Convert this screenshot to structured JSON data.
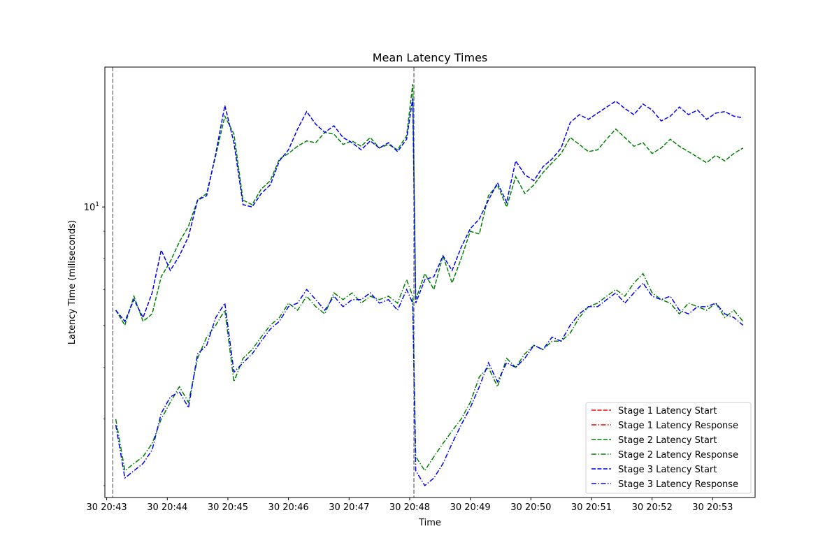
{
  "chart_data": {
    "type": "line",
    "title": "Mean Latency Times",
    "xlabel": "Time",
    "ylabel": "Latency Time (miliseconds)",
    "yscale": "log",
    "ylim": [
      2.85,
      18.3
    ],
    "y_ticks": [
      {
        "value": 10,
        "label": "10",
        "exponent": "1"
      }
    ],
    "x_tick_labels": [
      "30 20:43",
      "30 20:44",
      "30 20:45",
      "30 20:46",
      "30 20:47",
      "30 20:48",
      "30 20:49",
      "30 20:50",
      "30 20:51",
      "30 20:52",
      "30 20:53"
    ],
    "xlim": [
      -0.03,
      10.7
    ],
    "vlines": [
      0.1,
      5.07
    ],
    "vline_color": "#808080",
    "legend_position": "lower right",
    "series": [
      {
        "name": "Stage 1 Latency Start",
        "color": "#ff0000",
        "style": "dashed",
        "x": [],
        "y": []
      },
      {
        "name": "Stage 1 Latency Response",
        "color": "#ff0000",
        "style": "dashdot",
        "x": [],
        "y": []
      },
      {
        "name": "Stage 2 Latency Start",
        "color": "#008000",
        "style": "dashed",
        "x": [
          0.15,
          0.3,
          0.45,
          0.6,
          0.75,
          0.9,
          1.05,
          1.2,
          1.35,
          1.5,
          1.65,
          1.8,
          1.95,
          2.1,
          2.25,
          2.4,
          2.55,
          2.7,
          2.85,
          3.0,
          3.15,
          3.3,
          3.45,
          3.6,
          3.75,
          3.9,
          4.05,
          4.2,
          4.35,
          4.5,
          4.65,
          4.8,
          4.95,
          5.05,
          5.1,
          5.25,
          5.4,
          5.55,
          5.7,
          5.85,
          6.0,
          6.15,
          6.3,
          6.45,
          6.6,
          6.75,
          6.9,
          7.05,
          7.2,
          7.35,
          7.5,
          7.65,
          7.8,
          7.95,
          8.1,
          8.25,
          8.4,
          8.55,
          8.7,
          8.85,
          9.0,
          9.15,
          9.3,
          9.45,
          9.6,
          9.75,
          9.9,
          10.05,
          10.2,
          10.35,
          10.5
        ],
        "y": [
          6.4,
          6.0,
          6.8,
          6.1,
          6.3,
          7.4,
          7.9,
          8.6,
          9.2,
          10.3,
          10.6,
          12.5,
          14.8,
          13.7,
          10.3,
          10.1,
          10.8,
          11.2,
          12.3,
          12.6,
          13.0,
          13.3,
          13.2,
          13.8,
          13.7,
          13.1,
          13.3,
          13.0,
          13.5,
          12.9,
          13.1,
          12.8,
          13.6,
          17.0,
          6.7,
          7.5,
          7.0,
          8.1,
          7.2,
          8.0,
          9.0,
          8.9,
          10.5,
          11.0,
          10.0,
          11.4,
          10.6,
          11.0,
          11.6,
          12.1,
          12.6,
          13.5,
          13.1,
          12.7,
          12.8,
          13.4,
          14.0,
          13.5,
          13.0,
          13.2,
          12.6,
          12.9,
          13.4,
          13.0,
          12.7,
          12.4,
          12.1,
          12.5,
          12.2,
          12.6,
          12.9
        ]
      },
      {
        "name": "Stage 2 Latency Response",
        "color": "#008000",
        "style": "dashdot",
        "x": [
          0.15,
          0.3,
          0.45,
          0.6,
          0.75,
          0.9,
          1.05,
          1.2,
          1.35,
          1.5,
          1.65,
          1.8,
          1.95,
          2.1,
          2.25,
          2.4,
          2.55,
          2.7,
          2.85,
          3.0,
          3.15,
          3.3,
          3.45,
          3.6,
          3.75,
          3.9,
          4.05,
          4.2,
          4.35,
          4.5,
          4.65,
          4.8,
          4.95,
          5.05,
          5.1,
          5.25,
          5.4,
          5.55,
          5.7,
          5.85,
          6.0,
          6.15,
          6.3,
          6.45,
          6.6,
          6.75,
          6.9,
          7.05,
          7.2,
          7.35,
          7.5,
          7.65,
          7.8,
          7.95,
          8.1,
          8.25,
          8.4,
          8.55,
          8.7,
          8.85,
          9.0,
          9.15,
          9.3,
          9.45,
          9.6,
          9.75,
          9.9,
          10.05,
          10.2,
          10.35,
          10.5
        ],
        "y": [
          4.0,
          3.2,
          3.3,
          3.4,
          3.6,
          4.0,
          4.3,
          4.6,
          4.3,
          5.2,
          5.7,
          6.0,
          6.4,
          4.7,
          5.2,
          5.4,
          5.7,
          6.0,
          6.2,
          6.6,
          6.4,
          6.8,
          6.5,
          6.3,
          6.9,
          6.7,
          6.9,
          6.6,
          6.8,
          6.7,
          6.8,
          6.6,
          7.3,
          6.8,
          3.4,
          3.2,
          3.4,
          3.6,
          3.8,
          4.0,
          4.3,
          4.8,
          5.0,
          4.6,
          5.2,
          5.0,
          5.3,
          5.5,
          5.4,
          5.6,
          5.6,
          5.8,
          6.2,
          6.5,
          6.6,
          6.8,
          7.0,
          6.8,
          7.2,
          7.5,
          6.9,
          6.7,
          6.6,
          6.3,
          6.6,
          6.5,
          6.4,
          6.6,
          6.2,
          6.4,
          6.1
        ]
      },
      {
        "name": "Stage 3 Latency Start",
        "color": "#0000ff",
        "style": "dashed",
        "x": [
          0.15,
          0.3,
          0.45,
          0.6,
          0.75,
          0.9,
          1.05,
          1.2,
          1.35,
          1.5,
          1.65,
          1.8,
          1.95,
          2.1,
          2.25,
          2.4,
          2.55,
          2.7,
          2.85,
          3.0,
          3.15,
          3.3,
          3.45,
          3.6,
          3.75,
          3.9,
          4.05,
          4.2,
          4.35,
          4.5,
          4.65,
          4.8,
          4.95,
          5.05,
          5.1,
          5.25,
          5.4,
          5.55,
          5.7,
          5.85,
          6.0,
          6.15,
          6.3,
          6.45,
          6.6,
          6.75,
          6.9,
          7.05,
          7.2,
          7.35,
          7.5,
          7.65,
          7.8,
          7.95,
          8.1,
          8.25,
          8.4,
          8.55,
          8.7,
          8.85,
          9.0,
          9.15,
          9.3,
          9.45,
          9.6,
          9.75,
          9.9,
          10.05,
          10.2,
          10.35,
          10.5
        ],
        "y": [
          6.4,
          6.1,
          6.7,
          6.2,
          6.9,
          8.3,
          7.6,
          8.1,
          8.8,
          10.3,
          10.5,
          12.6,
          15.5,
          13.2,
          10.1,
          10.0,
          10.6,
          11.0,
          12.2,
          12.8,
          14.0,
          15.1,
          14.3,
          13.8,
          14.2,
          13.5,
          13.2,
          12.8,
          13.3,
          12.9,
          13.2,
          12.7,
          13.4,
          16.0,
          6.6,
          7.3,
          7.4,
          8.1,
          7.6,
          8.4,
          9.1,
          9.5,
          10.3,
          11.1,
          10.2,
          12.2,
          11.5,
          11.2,
          11.9,
          12.3,
          12.9,
          14.4,
          14.9,
          14.6,
          15.0,
          15.4,
          15.8,
          15.3,
          14.9,
          15.6,
          15.2,
          14.5,
          14.8,
          15.4,
          14.9,
          15.2,
          14.6,
          15.0,
          15.1,
          14.8,
          14.7
        ]
      },
      {
        "name": "Stage 3 Latency Response",
        "color": "#0000ff",
        "style": "dashdot",
        "x": [
          0.15,
          0.3,
          0.45,
          0.6,
          0.75,
          0.9,
          1.05,
          1.2,
          1.35,
          1.5,
          1.65,
          1.8,
          1.95,
          2.1,
          2.25,
          2.4,
          2.55,
          2.7,
          2.85,
          3.0,
          3.15,
          3.3,
          3.45,
          3.6,
          3.75,
          3.9,
          4.05,
          4.2,
          4.35,
          4.5,
          4.65,
          4.8,
          4.95,
          5.05,
          5.1,
          5.25,
          5.4,
          5.55,
          5.7,
          5.85,
          6.0,
          6.15,
          6.3,
          6.45,
          6.6,
          6.75,
          6.9,
          7.05,
          7.2,
          7.35,
          7.5,
          7.65,
          7.8,
          7.95,
          8.1,
          8.25,
          8.4,
          8.55,
          8.7,
          8.85,
          9.0,
          9.15,
          9.3,
          9.45,
          9.6,
          9.75,
          9.9,
          10.05,
          10.2,
          10.35,
          10.5
        ],
        "y": [
          3.9,
          3.1,
          3.2,
          3.3,
          3.5,
          4.1,
          4.4,
          4.5,
          4.2,
          5.3,
          5.5,
          6.2,
          6.6,
          4.9,
          5.1,
          5.3,
          5.6,
          5.9,
          6.1,
          6.5,
          6.6,
          7.0,
          6.7,
          6.4,
          6.8,
          6.5,
          6.7,
          6.7,
          6.9,
          6.6,
          6.7,
          6.4,
          7.0,
          6.6,
          3.2,
          3.0,
          3.1,
          3.3,
          3.6,
          3.9,
          4.2,
          4.6,
          5.1,
          4.7,
          5.1,
          5.0,
          5.2,
          5.5,
          5.4,
          5.7,
          5.6,
          6.0,
          6.3,
          6.5,
          6.5,
          6.7,
          6.9,
          6.6,
          6.9,
          7.2,
          6.8,
          6.7,
          6.8,
          6.4,
          6.3,
          6.5,
          6.5,
          6.6,
          6.3,
          6.2,
          6.0
        ]
      }
    ]
  }
}
